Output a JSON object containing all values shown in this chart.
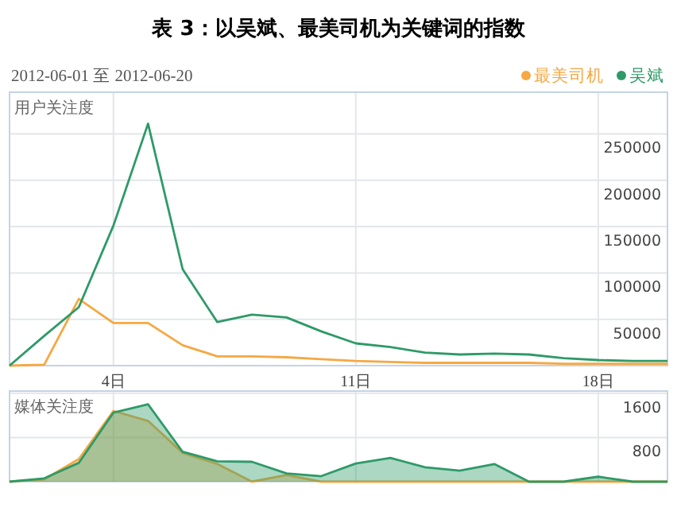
{
  "chart_data": [
    {
      "type": "line",
      "title": "表 3：以吴斌、最美司机为关键词的指数",
      "subtitle": "2012-06-01 至 2012-06-20",
      "ylabel": "用户关注度",
      "x": [
        1,
        2,
        3,
        4,
        5,
        6,
        7,
        8,
        9,
        10,
        11,
        12,
        13,
        14,
        15,
        16,
        17,
        18,
        19,
        20
      ],
      "series": [
        {
          "name": "最美司机",
          "color": "#f5a843",
          "values": [
            0,
            1000,
            72000,
            46000,
            46000,
            22000,
            10000,
            10000,
            9000,
            7000,
            5000,
            4000,
            3000,
            3000,
            3000,
            3000,
            2000,
            2000,
            2000,
            2000
          ]
        },
        {
          "name": "吴斌",
          "color": "#2e9a68",
          "values": [
            0,
            32000,
            63000,
            151000,
            261000,
            104000,
            47000,
            55000,
            52000,
            37000,
            24000,
            20000,
            14000,
            12000,
            13000,
            12000,
            8000,
            6000,
            5000,
            5000
          ]
        }
      ],
      "xlim": [
        1,
        20
      ],
      "ylim": [
        0,
        295000
      ],
      "xticks": [
        {
          "value": 4,
          "label": "4日"
        },
        {
          "value": 11,
          "label": "11日"
        },
        {
          "value": 18,
          "label": "18日"
        }
      ],
      "yticks": [
        50000,
        100000,
        150000,
        200000,
        250000
      ],
      "grid": true,
      "legend": "top right",
      "marker": "none"
    },
    {
      "type": "area",
      "ylabel": "媒体关注度",
      "x": [
        1,
        2,
        3,
        4,
        5,
        6,
        7,
        8,
        9,
        10,
        11,
        12,
        13,
        14,
        15,
        16,
        17,
        18,
        19,
        20
      ],
      "series": [
        {
          "color": "#f5a843",
          "values": [
            0,
            40,
            410,
            1280,
            1100,
            520,
            320,
            0,
            120,
            0,
            0,
            0,
            0,
            0,
            0,
            0,
            0,
            0,
            0,
            0
          ]
        },
        {
          "color": "#2e9a68",
          "values": [
            0,
            60,
            340,
            1250,
            1400,
            540,
            370,
            360,
            150,
            100,
            330,
            430,
            260,
            200,
            320,
            0,
            0,
            90,
            0,
            0
          ]
        }
      ],
      "xlim": [
        1,
        20
      ],
      "ylim": [
        0,
        1640
      ],
      "xticks": [
        {
          "value": 4,
          "label": null
        },
        {
          "value": 11,
          "label": null
        },
        {
          "value": 18,
          "label": null
        }
      ],
      "yticks": [
        800,
        1600
      ],
      "grid": true,
      "tick_labels": "y",
      "marker": "none"
    }
  ]
}
